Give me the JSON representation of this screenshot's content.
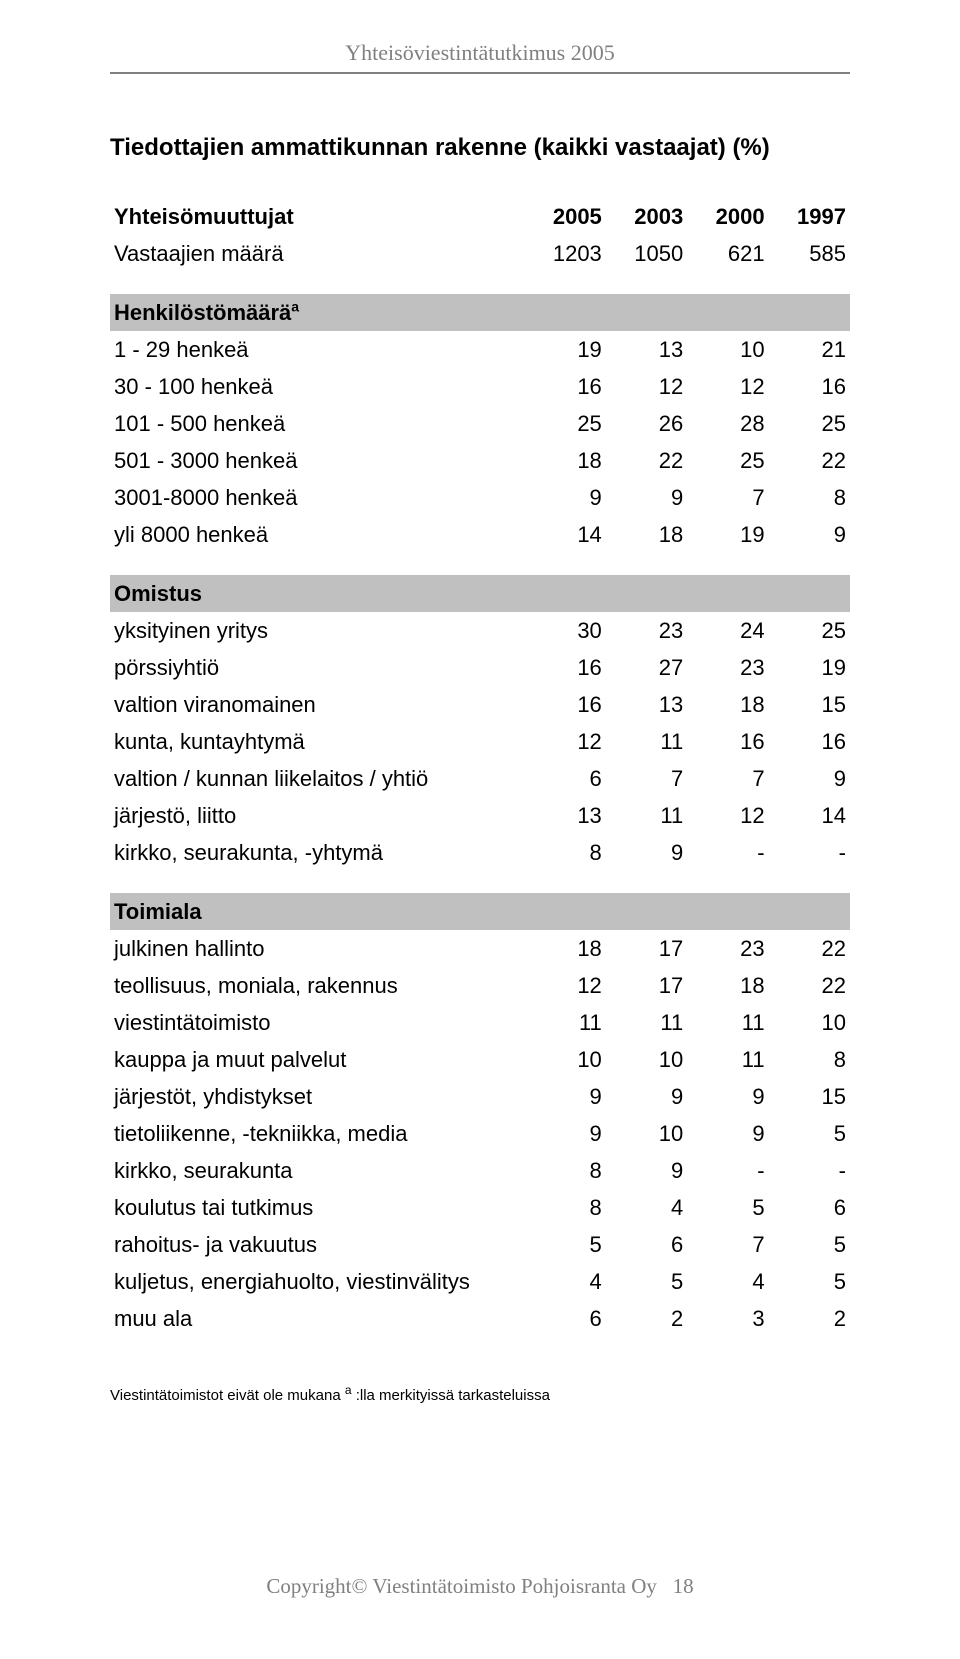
{
  "header": "Yhteisöviestintätutkimus 2005",
  "title": "Tiedottajien ammattikunnan rakenne (kaikki vastaajat) (%)",
  "columns": {
    "label": "Yhteisömuuttujat",
    "c1": "2005",
    "c2": "2003",
    "c3": "2000",
    "c4": "1997"
  },
  "rowVastaajien": {
    "label": "Vastaajien määrä",
    "v": [
      "1203",
      "1050",
      "621",
      "585"
    ]
  },
  "section1": "Henkilöstömäärä",
  "section1_sup": "a",
  "rows1": [
    {
      "label": "1 - 29 henkeä",
      "v": [
        "19",
        "13",
        "10",
        "21"
      ]
    },
    {
      "label": "30 - 100 henkeä",
      "v": [
        "16",
        "12",
        "12",
        "16"
      ]
    },
    {
      "label": "101 - 500 henkeä",
      "v": [
        "25",
        "26",
        "28",
        "25"
      ]
    },
    {
      "label": "501 - 3000 henkeä",
      "v": [
        "18",
        "22",
        "25",
        "22"
      ]
    },
    {
      "label": "3001-8000 henkeä",
      "v": [
        "9",
        "9",
        "7",
        "8"
      ]
    },
    {
      "label": "yli 8000 henkeä",
      "v": [
        "14",
        "18",
        "19",
        "9"
      ]
    }
  ],
  "section2": "Omistus",
  "rows2": [
    {
      "label": "yksityinen yritys",
      "v": [
        "30",
        "23",
        "24",
        "25"
      ]
    },
    {
      "label": "pörssiyhtiö",
      "v": [
        "16",
        "27",
        "23",
        "19"
      ]
    },
    {
      "label": "valtion viranomainen",
      "v": [
        "16",
        "13",
        "18",
        "15"
      ]
    },
    {
      "label": "kunta, kuntayhtymä",
      "v": [
        "12",
        "11",
        "16",
        "16"
      ]
    },
    {
      "label": "valtion / kunnan liikelaitos / yhtiö",
      "v": [
        "6",
        "7",
        "7",
        "9"
      ]
    },
    {
      "label": "järjestö, liitto",
      "v": [
        "13",
        "11",
        "12",
        "14"
      ]
    },
    {
      "label": "kirkko, seurakunta, -yhtymä",
      "v": [
        "8",
        "9",
        "-",
        "-"
      ]
    }
  ],
  "section3": "Toimiala",
  "rows3": [
    {
      "label": "julkinen hallinto",
      "v": [
        "18",
        "17",
        "23",
        "22"
      ]
    },
    {
      "label": "teollisuus, moniala, rakennus",
      "v": [
        "12",
        "17",
        "18",
        "22"
      ]
    },
    {
      "label": "viestintätoimisto",
      "v": [
        "11",
        "11",
        "11",
        "10"
      ]
    },
    {
      "label": "kauppa ja muut palvelut",
      "v": [
        "10",
        "10",
        "11",
        "8"
      ]
    },
    {
      "label": "järjestöt, yhdistykset",
      "v": [
        "9",
        "9",
        "9",
        "15"
      ]
    },
    {
      "label": "tietoliikenne, -tekniikka, media",
      "v": [
        "9",
        "10",
        "9",
        "5"
      ]
    },
    {
      "label": "kirkko, seurakunta",
      "v": [
        "8",
        "9",
        "-",
        "-"
      ]
    },
    {
      "label": "koulutus tai tutkimus",
      "v": [
        "8",
        "4",
        "5",
        "6"
      ]
    },
    {
      "label": "rahoitus- ja vakuutus",
      "v": [
        "5",
        "6",
        "7",
        "5"
      ]
    },
    {
      "label": "kuljetus, energiahuolto, viestinvälitys",
      "v": [
        "4",
        "5",
        "4",
        "5"
      ]
    },
    {
      "label": "muu ala",
      "v": [
        "6",
        "2",
        "3",
        "2"
      ]
    }
  ],
  "footnote_prefix": "Viestintätoimistot eivät ole mukana ",
  "footnote_sup": "a",
  "footnote_suffix": " :lla merkityissä tarkasteluissa",
  "footer_left": "Copyright",
  "footer_copy": "©",
  "footer_company": " Viestintätoimisto Pohjoisranta Oy",
  "footer_page": "18"
}
